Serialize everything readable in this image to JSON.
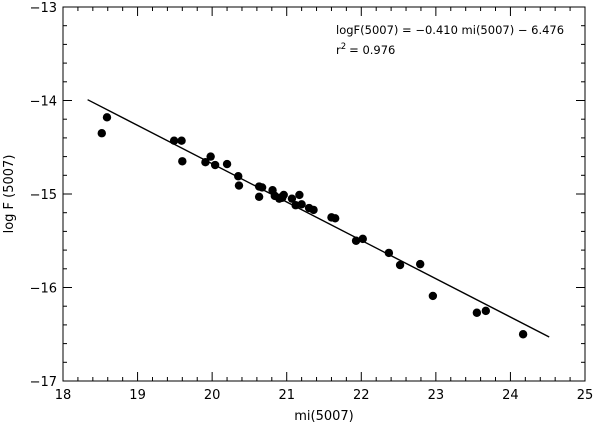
{
  "chart_data": {
    "type": "scatter",
    "title": "",
    "xlabel": "mi(5007)",
    "ylabel": "log F (5007)",
    "xlim": [
      18,
      25
    ],
    "ylim": [
      -17,
      -13
    ],
    "xticks": [
      18,
      19,
      20,
      21,
      22,
      23,
      24,
      25
    ],
    "yticks": [
      -17,
      -16,
      -15,
      -14,
      -13
    ],
    "x_tick_labels": [
      "18",
      "19",
      "20",
      "21",
      "22",
      "23",
      "24",
      "25"
    ],
    "y_tick_labels": [
      "-17",
      "-16",
      "-15",
      "-14",
      "-13"
    ],
    "grid": false,
    "annotation": {
      "line1": "logF(5007) = −0.410 mi(5007) − 6.476",
      "line2_prefix": "r",
      "line2_sup": "2",
      "line2_suffix": "= 0.976"
    },
    "fit_line": {
      "slope": -0.41,
      "intercept": -6.476,
      "x_range": [
        18.33,
        24.52
      ]
    },
    "points": [
      [
        18.52,
        -14.35
      ],
      [
        18.59,
        -14.18
      ],
      [
        19.49,
        -14.43
      ],
      [
        19.59,
        -14.43
      ],
      [
        19.6,
        -14.65
      ],
      [
        19.91,
        -14.66
      ],
      [
        19.98,
        -14.6
      ],
      [
        20.04,
        -14.69
      ],
      [
        20.2,
        -14.68
      ],
      [
        20.35,
        -14.81
      ],
      [
        20.36,
        -14.91
      ],
      [
        20.63,
        -15.03
      ],
      [
        20.63,
        -14.92
      ],
      [
        20.67,
        -14.93
      ],
      [
        20.81,
        -14.96
      ],
      [
        20.84,
        -15.02
      ],
      [
        20.9,
        -15.05
      ],
      [
        20.91,
        -15.04
      ],
      [
        20.94,
        -15.04
      ],
      [
        20.96,
        -15.01
      ],
      [
        21.07,
        -15.05
      ],
      [
        21.12,
        -15.12
      ],
      [
        21.17,
        -15.01
      ],
      [
        21.2,
        -15.11
      ],
      [
        21.3,
        -15.15
      ],
      [
        21.36,
        -15.17
      ],
      [
        21.6,
        -15.25
      ],
      [
        21.65,
        -15.26
      ],
      [
        21.93,
        -15.5
      ],
      [
        22.02,
        -15.48
      ],
      [
        22.37,
        -15.63
      ],
      [
        22.52,
        -15.76
      ],
      [
        22.79,
        -15.75
      ],
      [
        22.96,
        -16.09
      ],
      [
        23.55,
        -16.27
      ],
      [
        23.67,
        -16.25
      ],
      [
        24.17,
        -16.5
      ]
    ]
  }
}
